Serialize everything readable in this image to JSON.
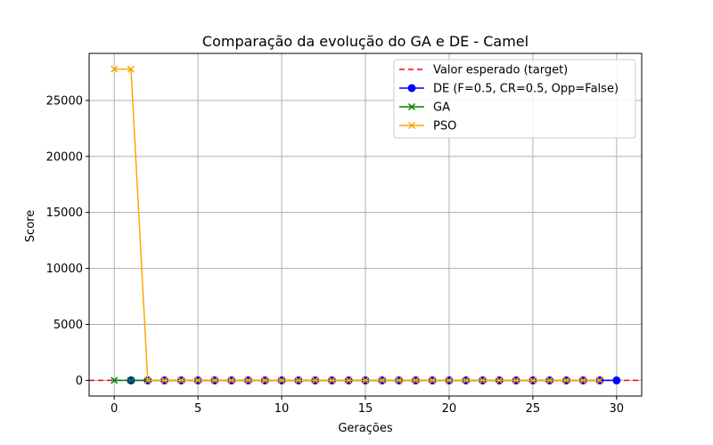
{
  "chart_data": {
    "type": "line",
    "title": "Comparação da evolução do GA e DE - Camel",
    "xlabel": "Gerações",
    "ylabel": "Score",
    "xlim": [
      -1.5,
      31.5
    ],
    "ylim": [
      -1400,
      29200
    ],
    "xticks": [
      0,
      5,
      10,
      15,
      20,
      25,
      30
    ],
    "yticks": [
      0,
      5000,
      10000,
      15000,
      20000,
      25000
    ],
    "grid": true,
    "legend_position": "top-right",
    "target": {
      "name": "Valor esperado (target)",
      "value": 0,
      "color": "#ff0000"
    },
    "series": [
      {
        "name": "DE (F=0.5, CR=0.5, Opp=False)",
        "color": "#0000ff",
        "marker": "circle",
        "x": [
          1,
          2,
          3,
          4,
          5,
          6,
          7,
          8,
          9,
          10,
          11,
          12,
          13,
          14,
          15,
          16,
          17,
          18,
          19,
          20,
          21,
          22,
          23,
          24,
          25,
          26,
          27,
          28,
          29,
          30
        ],
        "y": [
          0,
          0,
          0,
          0,
          0,
          0,
          0,
          0,
          0,
          0,
          0,
          0,
          0,
          0,
          0,
          0,
          0,
          0,
          0,
          0,
          0,
          0,
          0,
          0,
          0,
          0,
          0,
          0,
          0,
          0
        ]
      },
      {
        "name": "GA",
        "color": "#008000",
        "marker": "x",
        "x": [
          0,
          1,
          2,
          3,
          4,
          5,
          6,
          7,
          8,
          9,
          10,
          11,
          12,
          13,
          14,
          15,
          16,
          17,
          18,
          19,
          20,
          21,
          22,
          23,
          24,
          25,
          26,
          27,
          28,
          29
        ],
        "y": [
          0,
          0,
          0,
          0,
          0,
          0,
          0,
          0,
          0,
          0,
          0,
          0,
          0,
          0,
          0,
          0,
          0,
          0,
          0,
          0,
          0,
          0,
          0,
          0,
          0,
          0,
          0,
          0,
          0,
          0
        ]
      },
      {
        "name": "PSO",
        "color": "#ffa500",
        "marker": "x",
        "x": [
          0,
          1,
          2,
          3,
          4,
          5,
          6,
          7,
          8,
          9,
          10,
          11,
          12,
          13,
          14,
          15,
          16,
          17,
          18,
          19,
          20,
          21,
          22,
          23,
          24,
          25,
          26,
          27,
          28,
          29
        ],
        "y": [
          27800,
          27800,
          0,
          0,
          0,
          0,
          0,
          0,
          0,
          0,
          0,
          0,
          0,
          0,
          0,
          0,
          0,
          0,
          0,
          0,
          0,
          0,
          0,
          0,
          0,
          0,
          0,
          0,
          0,
          0
        ]
      }
    ]
  }
}
